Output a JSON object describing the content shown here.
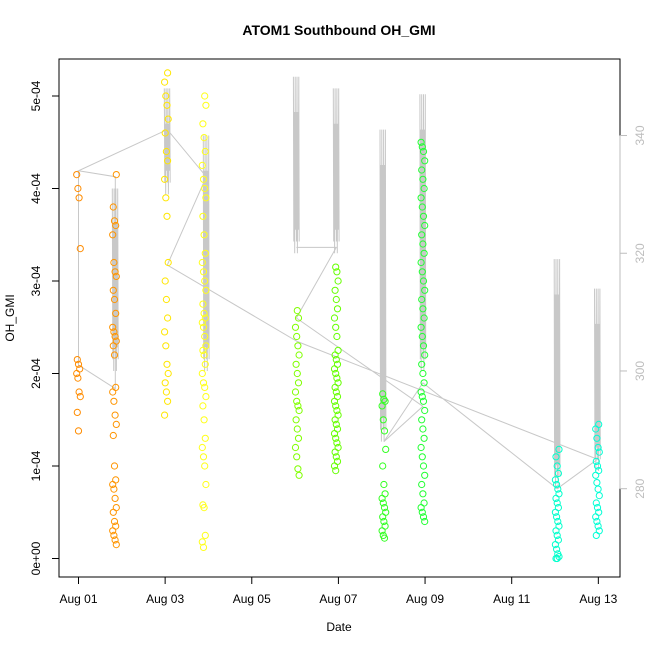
{
  "chart_data": {
    "type": "scatter",
    "title": "ATOM1 Southbound OH_GMI",
    "xlabel": "Date",
    "ylabel": "OH_GMI",
    "x_ticks": [
      "Aug 01",
      "Aug 03",
      "Aug 05",
      "Aug 07",
      "Aug 09",
      "Aug 11",
      "Aug 13"
    ],
    "x_tick_days": [
      1,
      3,
      5,
      7,
      9,
      11,
      13
    ],
    "xlim_days": [
      0.55,
      13.5
    ],
    "y_ticks": [
      "0e+00",
      "1e-04",
      "2e-04",
      "3e-04",
      "4e-04",
      "5e-04"
    ],
    "y_tick_values": [
      0,
      0.0001,
      0.0002,
      0.0003,
      0.0004,
      0.0005
    ],
    "ylim": [
      -2e-05,
      0.00054
    ],
    "y2_ticks": [
      "280",
      "300",
      "320",
      "340"
    ],
    "y2_tick_values": [
      280,
      300,
      320,
      340
    ],
    "y2lim": [
      265,
      353
    ],
    "y2_color": "#bdbdbd",
    "grid": false,
    "line_color": "#c8c8c8",
    "point_clusters": [
      {
        "day": 1.0,
        "color": "#ff8c00",
        "values": [
          0.000415,
          0.0004,
          0.00039,
          0.000335,
          0.000215,
          0.00021,
          0.000205,
          0.0002,
          0.000195,
          0.00018,
          0.000175,
          0.000158,
          0.000138
        ]
      },
      {
        "day": 1.83,
        "color": "#ff9500",
        "values": [
          0.000415,
          0.00038,
          0.000365,
          0.00036,
          0.00035,
          0.00032,
          0.00031,
          0.000305,
          0.00029,
          0.00028,
          0.000265,
          0.00025,
          0.000245,
          0.00024,
          0.000235,
          0.00023,
          0.00022,
          0.000185,
          0.00018,
          0.00017,
          0.000155,
          0.000145,
          0.000133,
          0.0001,
          8.5e-05,
          8e-05,
          7.5e-05,
          6.5e-05,
          5.5e-05,
          5e-05,
          4e-05,
          3.5e-05,
          3e-05,
          2.5e-05,
          2e-05,
          1.5e-05
        ]
      },
      {
        "day": 3.03,
        "color": "#ffe600",
        "values": [
          0.000525,
          0.000515,
          0.0005,
          0.00049,
          0.000475,
          0.00046,
          0.00044,
          0.00043,
          0.00041,
          0.00039,
          0.00037,
          0.00032,
          0.0003,
          0.00028,
          0.00026,
          0.000245,
          0.00023,
          0.00021,
          0.0002,
          0.00019,
          0.00018,
          0.00017,
          0.000155
        ]
      },
      {
        "day": 3.9,
        "color": "#ffff1a",
        "values": [
          0.0005,
          0.00049,
          0.00047,
          0.000455,
          0.00044,
          0.000425,
          0.00041,
          0.0004,
          0.00039,
          0.00037,
          0.00035,
          0.00033,
          0.00032,
          0.00031,
          0.0003,
          0.00029,
          0.000275,
          0.000265,
          0.00026,
          0.000255,
          0.00025,
          0.00024,
          0.00023,
          0.000225,
          0.00022,
          0.00021,
          0.0002,
          0.00019,
          0.000185,
          0.000175,
          0.000165,
          0.00015,
          0.00013,
          0.00012,
          0.00011,
          0.0001,
          8e-05,
          5.8e-05,
          5.5e-05,
          2.5e-05,
          1.8e-05,
          1.2e-05
        ]
      },
      {
        "day": 6.05,
        "color": "#80ff00",
        "values": [
          0.000268,
          0.00026,
          0.00025,
          0.00024,
          0.00023,
          0.00022,
          0.00021,
          0.0002,
          0.00019,
          0.00018,
          0.00017,
          0.000165,
          0.00016,
          0.00015,
          0.00014,
          0.00013,
          0.00012,
          0.00011,
          9.7e-05,
          9e-05
        ]
      },
      {
        "day": 6.95,
        "color": "#66ff00",
        "values": [
          0.000315,
          0.00031,
          0.0003,
          0.00029,
          0.00028,
          0.00027,
          0.00026,
          0.00025,
          0.00024,
          0.000225,
          0.00022,
          0.000215,
          0.00021,
          0.000205,
          0.0002,
          0.000195,
          0.00019,
          0.000185,
          0.00018,
          0.000175,
          0.00017,
          0.000165,
          0.00016,
          0.000155,
          0.00015,
          0.000145,
          0.00014,
          0.000135,
          0.00013,
          0.000125,
          0.00012,
          0.000115,
          0.00011,
          0.000105,
          0.0001,
          9.5e-05
        ]
      },
      {
        "day": 8.05,
        "color": "#33ff22",
        "values": [
          0.000178,
          0.000172,
          0.00017,
          0.000165,
          0.00015,
          0.000138,
          0.000118,
          0.0001,
          8e-05,
          7e-05,
          6.5e-05,
          6e-05,
          5.5e-05,
          5e-05,
          4.5e-05,
          4e-05,
          3.5e-05,
          3e-05,
          2.5e-05,
          2.2e-05
        ]
      },
      {
        "day": 8.95,
        "color": "#22ff33",
        "values": [
          0.00045,
          0.000445,
          0.00044,
          0.00043,
          0.00042,
          0.00041,
          0.0004,
          0.00039,
          0.00038,
          0.00037,
          0.00036,
          0.00035,
          0.00034,
          0.00033,
          0.00032,
          0.00031,
          0.0003,
          0.00029,
          0.00028,
          0.00027,
          0.00026,
          0.00025,
          0.00024,
          0.00023,
          0.00022,
          0.00021,
          0.0002,
          0.00019,
          0.00018,
          0.000175,
          0.00017,
          0.00016,
          0.00015,
          0.00014,
          0.00013,
          0.00012,
          0.00011,
          0.0001,
          9e-05,
          8e-05,
          7e-05,
          6e-05,
          5.5e-05,
          5e-05,
          4.5e-05,
          4e-05
        ]
      },
      {
        "day": 12.05,
        "color": "#00ffcc",
        "values": [
          0.000118,
          0.00011,
          0.0001,
          9.2e-05,
          8.5e-05,
          8e-05,
          7.5e-05,
          7e-05,
          6.5e-05,
          6e-05,
          5.5e-05,
          5e-05,
          4.5e-05,
          4e-05,
          3.5e-05,
          3e-05,
          2.5e-05,
          2e-05,
          1.5e-05,
          1e-05,
          5e-06,
          2e-06,
          0.0,
          0.0
        ]
      },
      {
        "day": 12.98,
        "color": "#00ffd5",
        "values": [
          0.000145,
          0.00014,
          0.00013,
          0.00012,
          0.000115,
          0.000105,
          0.0001,
          9.5e-05,
          9e-05,
          8.2e-05,
          7.5e-05,
          6.8e-05,
          6e-05,
          5.5e-05,
          5e-05,
          4.5e-05,
          4e-05,
          3.5e-05,
          3e-05,
          2.5e-05
        ]
      }
    ],
    "temperature_spikes": [
      {
        "day": 1.85,
        "base": 300,
        "peak": 331
      },
      {
        "day": 3.05,
        "base": 330,
        "peak": 348
      },
      {
        "day": 3.95,
        "base": 300,
        "peak": 340
      },
      {
        "day": 6.03,
        "base": 320,
        "peak": 350
      },
      {
        "day": 6.95,
        "base": 320,
        "peak": 348
      },
      {
        "day": 8.03,
        "base": 288,
        "peak": 341
      },
      {
        "day": 8.95,
        "base": 300,
        "peak": 347
      },
      {
        "day": 12.05,
        "base": 280,
        "peak": 319
      },
      {
        "day": 12.98,
        "base": 283,
        "peak": 314
      }
    ],
    "temperature_path": [
      {
        "day": 1.0,
        "t": 334
      },
      {
        "day": 1.0,
        "t": 301
      },
      {
        "day": 1.85,
        "t": 297
      },
      {
        "day": 1.85,
        "t": 333
      },
      {
        "day": 1.0,
        "t": 334
      },
      {
        "day": 3.05,
        "t": 341
      },
      {
        "day": 3.95,
        "t": 333
      },
      {
        "day": 3.05,
        "t": 318
      },
      {
        "day": 6.05,
        "t": 305
      },
      {
        "day": 12.98,
        "t": 285
      },
      {
        "day": 12.05,
        "t": 280
      },
      {
        "day": 8.95,
        "t": 298
      },
      {
        "day": 8.05,
        "t": 288
      },
      {
        "day": 8.95,
        "t": 294
      },
      {
        "day": 6.03,
        "t": 309
      },
      {
        "day": 6.95,
        "t": 321
      },
      {
        "day": 6.03,
        "t": 321
      }
    ]
  }
}
